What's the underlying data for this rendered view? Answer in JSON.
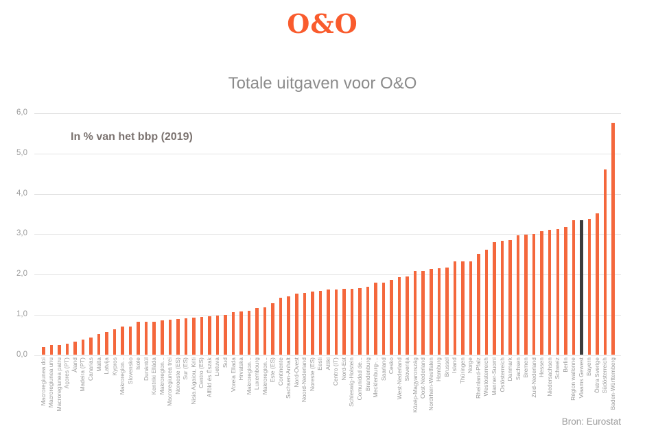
{
  "logo": {
    "text": "O&O",
    "color": "#f95b2d"
  },
  "header": {
    "title": "Totale uitgaven voor O&O",
    "subtitle": "In % van het bbp (2019)"
  },
  "source_credit": "Bron: Eurostat",
  "colors": {
    "bar": "#f4673c",
    "highlight_bar": "#3c3c3c",
    "gridline": "#e4e4e4",
    "axis_text": "#9b9b9b",
    "title_text": "#8b8b8b",
    "subtitle_text": "#7b7370",
    "logo": "#f95b2d",
    "source_text": "#9b9b9b",
    "background": "#ffffff"
  },
  "chart_data": {
    "type": "bar",
    "title": "Totale uitgaven voor O&O",
    "subtitle": "In % van het bbp (2019)",
    "ylabel": "% van het bbp",
    "xlabel": "",
    "ylim": [
      0,
      6
    ],
    "ytick_labels": [
      "0,0",
      "1,0",
      "2,0",
      "3,0",
      "4,0",
      "5,0",
      "6,0"
    ],
    "grid": "horizontal",
    "legend_position": "none",
    "highlight": {
      "category": "Vlaams Gewest",
      "index": 68
    },
    "categories": [
      "Macroregiunea doi",
      "Macroregiunea unu",
      "Macroregiunea patru",
      "Açores (PT)",
      "Åland",
      "Madeira (PT)",
      "Canarias",
      "Malta",
      "Latvija",
      "Kypros",
      "Makroregion...",
      "Slovensko",
      "Isole",
      "Dunántúl",
      "Kentriki Elláda",
      "Makroregion...",
      "Macroregiunea trei",
      "Noroeste (ES)",
      "Sur (ES)",
      "Nisia Aigaiou, Kriti",
      "Centro (ES)",
      "Alföld és Észak",
      "Lietuva",
      "Sud",
      "Voreia Ellada",
      "Hrvatska",
      "Makroregion...",
      "Luxembourg",
      "Makroregion...",
      "Este (ES)",
      "Continente",
      "Sachsen-Anhalt",
      "Nord-Ovest",
      "Noord-Nederland",
      "Noreste (ES)",
      "Eesti",
      "Attiki",
      "Centro (IT)",
      "Nord-Est",
      "Schleswig-Holstein",
      "Comunidad de...",
      "Brandenburg",
      "Mecklenburg-...",
      "Saarland",
      "Cesko",
      "West-Nederland",
      "Slovenija",
      "Közép-Magyarország",
      "Oost-Nederland",
      "Nordrhein-Westfalen",
      "Hamburg",
      "Brussel",
      "Island",
      "Thüringen",
      "Norge",
      "Rheinland-Pfalz",
      "Westösterreich",
      "Manner-Suomi",
      "Ostösterreich",
      "Danmark",
      "Sachsen",
      "Bremen",
      "Zuid-Nederland",
      "Hessen",
      "Niedersachsen",
      "Schweiz",
      "Berlin",
      "Région wallonne",
      "Vlaams Gewest",
      "Bayern",
      "Östra Sverige",
      "Südösterreich",
      "Baden-Württemberg"
    ],
    "values": [
      0.2,
      0.24,
      0.25,
      0.28,
      0.34,
      0.39,
      0.43,
      0.52,
      0.57,
      0.64,
      0.7,
      0.71,
      0.82,
      0.82,
      0.83,
      0.86,
      0.87,
      0.9,
      0.91,
      0.93,
      0.95,
      0.97,
      0.98,
      1.0,
      1.07,
      1.08,
      1.1,
      1.16,
      1.18,
      1.28,
      1.43,
      1.45,
      1.52,
      1.55,
      1.57,
      1.6,
      1.62,
      1.62,
      1.64,
      1.64,
      1.66,
      1.69,
      1.79,
      1.79,
      1.87,
      1.93,
      1.95,
      2.08,
      2.09,
      2.13,
      2.16,
      2.17,
      2.32,
      2.32,
      2.33,
      2.52,
      2.62,
      2.8,
      2.84,
      2.86,
      2.98,
      2.99,
      3.0,
      3.07,
      3.11,
      3.13,
      3.17,
      3.34,
      3.35,
      3.39,
      3.52,
      4.6,
      5.77
    ]
  }
}
